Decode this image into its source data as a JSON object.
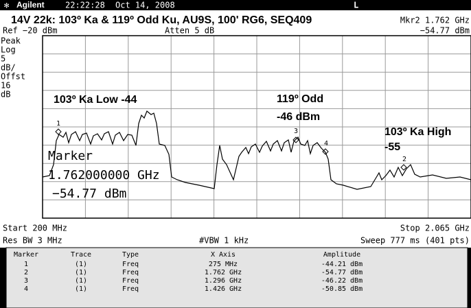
{
  "header": {
    "brand": "Agilent",
    "time": "22:22:28",
    "date": "Oct 14, 2008",
    "mode": "L"
  },
  "title": "14V 22k: 103º Ka & 119º Odd Ku, AU9S, 100' RG6, SEQ409",
  "marker_readout": {
    "label": "Mkr2 1.762 GHz",
    "value": "−54.77 dBm"
  },
  "ref": "Ref −20 dBm",
  "atten": "Atten 5 dB",
  "scale_labels": [
    "Peak",
    "Log",
    "5",
    "dB/",
    "Offst",
    "16",
    "dB"
  ],
  "annotations": {
    "ka_low": "103º Ka Low  -44",
    "odd": "119º Odd",
    "odd_level": "-46 dBm",
    "ka_high": "103º Ka High",
    "ka_high_level": "-55",
    "marker": "Marker",
    "marker_freq": "1.762000000 GHz",
    "marker_level": "−54.77 dBm"
  },
  "marker_numbers": [
    "1",
    "2",
    "3",
    "4"
  ],
  "start": "Start 200 MHz",
  "stop": "Stop 2.065 GHz",
  "res_bw": "Res BW 3 MHz",
  "vbw": "#VBW 1 kHz",
  "sweep": "Sweep 777 ms (401 pts)",
  "table": {
    "columns": [
      "Marker",
      "Trace",
      "Type",
      "X Axis",
      "Amplitude"
    ],
    "rows": [
      [
        "1",
        "(1)",
        "Freq",
        "275 MHz",
        "-44.21 dBm"
      ],
      [
        "2",
        "(1)",
        "Freq",
        "1.762 GHz",
        "-54.77 dBm"
      ],
      [
        "3",
        "(1)",
        "Freq",
        "1.296 GHz",
        "-46.22 dBm"
      ],
      [
        "4",
        "(1)",
        "Freq",
        "1.426 GHz",
        "-50.85 dBm"
      ]
    ]
  }
}
